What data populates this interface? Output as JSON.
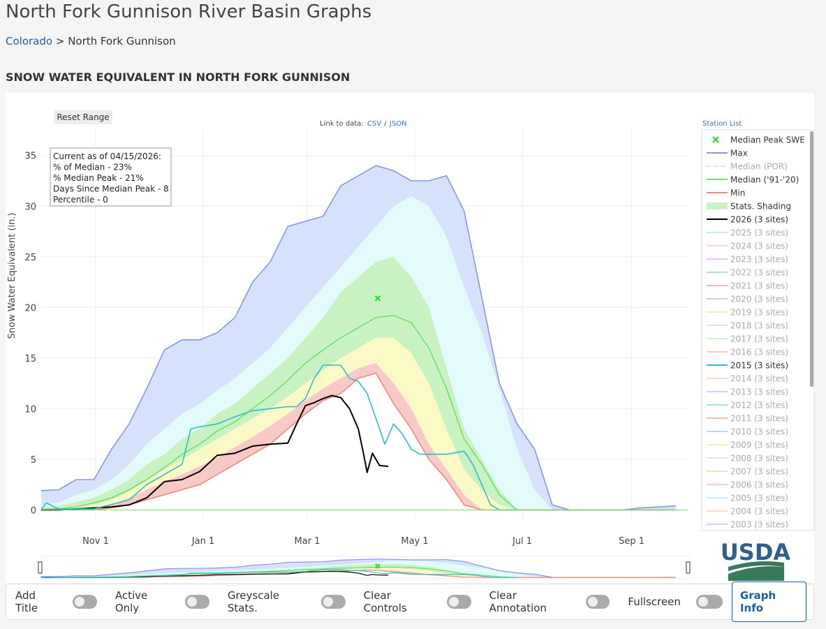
{
  "header": {
    "title": "North Fork Gunnison River Basin Graphs",
    "breadcrumb_link": "Colorado",
    "breadcrumb_sep": ">",
    "breadcrumb_current": "North Fork Gunnison",
    "section_title": "SNOW WATER EQUIVALENT IN NORTH FORK GUNNISON"
  },
  "chart_controls": {
    "reset_range": "Reset Range",
    "link_label": "Link to data:",
    "csv": "CSV",
    "slash": "/",
    "json": "JSON",
    "station_list": "Station List"
  },
  "chart_data": {
    "type": "line",
    "y_label": "Snow Water Equivalent (in.)",
    "xlim": [
      0,
      367
    ],
    "ylim": [
      -1,
      37.6
    ],
    "xticks": [
      {
        "value": 31,
        "label": "Nov 1"
      },
      {
        "value": 92,
        "label": "Jan 1"
      },
      {
        "value": 151,
        "label": "Mar 1"
      },
      {
        "value": 212,
        "label": "May 1"
      },
      {
        "value": 273,
        "label": "Jul 1"
      },
      {
        "value": 335,
        "label": "Sep 1"
      }
    ],
    "yticks": [
      0,
      5,
      10,
      15,
      20,
      25,
      30,
      35
    ],
    "grid": true,
    "annotation": [
      "Current as of 04/15/2026:",
      "% of Median - 23%",
      "% Median Peak - 21%",
      "Days Since Median Peak - 8",
      "Percentile - 0"
    ],
    "x": [
      0,
      10,
      20,
      30,
      40,
      50,
      60,
      70,
      80,
      90,
      100,
      110,
      120,
      130,
      140,
      150,
      160,
      170,
      180,
      190,
      200,
      210,
      220,
      230,
      240,
      250,
      260,
      270,
      280,
      290,
      300,
      310,
      320,
      330,
      340,
      350,
      360
    ],
    "series": [
      {
        "name": "Median Peak SWE",
        "style": "marker",
        "color": "#3ddc3d",
        "visible": true,
        "x": [
          191
        ],
        "values": [
          20.9
        ]
      },
      {
        "name": "Max",
        "style": "line",
        "color": "#8b95e8",
        "fill": "#d6e2fb",
        "visible": true,
        "values": [
          1.9,
          2.0,
          3.0,
          3.0,
          6.0,
          8.5,
          12,
          15.8,
          16.8,
          16.8,
          17.5,
          19,
          22.5,
          24.5,
          28,
          28.5,
          29,
          32,
          33,
          34,
          33.5,
          32.5,
          32.5,
          33,
          29.5,
          21,
          12.5,
          8.5,
          6,
          0.5,
          0,
          0,
          0,
          0,
          0.2,
          0.3,
          0.4
        ]
      },
      {
        "name": "Median (POR)",
        "style": "dash",
        "color": "#b9efb4",
        "visible": false
      },
      {
        "name": "Median ('91-'20)",
        "style": "line",
        "color": "#6fe06a",
        "visible": true,
        "values": [
          0,
          0.1,
          0.3,
          0.7,
          1.2,
          2,
          3,
          4.2,
          5.5,
          6.5,
          7.8,
          8.7,
          10,
          11.3,
          12.8,
          14.5,
          15.8,
          17,
          18,
          19,
          19.2,
          18.5,
          16,
          12,
          7,
          4.5,
          1.5,
          0,
          0,
          0,
          0,
          0,
          0,
          0,
          0,
          0,
          0
        ]
      },
      {
        "name": "Min",
        "style": "line",
        "color": "#f08a80",
        "fill": "#ffffff",
        "visible": true,
        "values": [
          0,
          0,
          0,
          0,
          0.2,
          0.5,
          1,
          1.5,
          2,
          2.5,
          3.5,
          4.5,
          5.5,
          6.5,
          8,
          9.5,
          10.8,
          11.5,
          13,
          13.5,
          10.5,
          8,
          5,
          3,
          0.5,
          0,
          0,
          0,
          0,
          0,
          0,
          0,
          0,
          0,
          0,
          0,
          0
        ]
      },
      {
        "name": "Stats. Shading",
        "style": "shade",
        "color": "#c9f2c3",
        "visible": true,
        "bands": [
          {
            "color": "#e3fbfb",
            "values": [
              0.5,
              0.7,
              1.5,
              2,
              3,
              4.5,
              6.5,
              8,
              9.5,
              10.5,
              11.8,
              13,
              14.5,
              16,
              18,
              20,
              22,
              24,
              26,
              28,
              30,
              31,
              30,
              27,
              22,
              17.5,
              12,
              6,
              2,
              0,
              0,
              0,
              0,
              0,
              0,
              0,
              0
            ]
          },
          {
            "color": "#c9f2c3",
            "values": [
              0.2,
              0.4,
              0.8,
              1.2,
              2,
              3,
              4.5,
              5.5,
              7,
              8,
              9.5,
              10.5,
              12,
              13.5,
              15,
              17,
              19,
              21.5,
              23,
              24.5,
              25,
              23,
              20,
              14,
              8,
              5,
              2,
              0,
              0,
              0,
              0,
              0,
              0,
              0,
              0,
              0,
              0
            ]
          },
          {
            "color": "#fbf9c6",
            "values": [
              0,
              0.1,
              0.3,
              0.5,
              1,
              1.8,
              3,
              4,
              5,
              6,
              7,
              8,
              9,
              10,
              11.2,
              12.5,
              13.8,
              15,
              16,
              17,
              17,
              15.5,
              12.5,
              8,
              4,
              2,
              0.5,
              0,
              0,
              0,
              0,
              0,
              0,
              0,
              0,
              0,
              0
            ]
          },
          {
            "color": "#f7c9c7",
            "values": [
              0,
              0,
              0,
              0.1,
              0.5,
              1.2,
              2,
              2.8,
              3.5,
              4.3,
              5.2,
              6.2,
              7.2,
              8.3,
              9.5,
              10.8,
              12,
              13,
              14,
              14.5,
              12.5,
              10,
              6.5,
              4,
              1.5,
              0,
              0,
              0,
              0,
              0,
              0,
              0,
              0,
              0,
              0,
              0,
              0
            ]
          }
        ]
      },
      {
        "name": "2026 (3 sites)",
        "style": "line",
        "color": "#000000",
        "width": 2,
        "visible": true,
        "x": [
          0,
          10,
          20,
          30,
          40,
          50,
          60,
          70,
          80,
          90,
          100,
          110,
          120,
          130,
          140,
          145,
          150,
          155,
          160,
          165,
          170,
          175,
          180,
          183,
          185,
          188,
          192,
          197
        ],
        "values": [
          0,
          0,
          0.1,
          0.2,
          0.3,
          0.5,
          1.2,
          2.8,
          3,
          3.8,
          5.4,
          5.6,
          6.3,
          6.5,
          6.6,
          8.5,
          10.3,
          10.6,
          11,
          11.3,
          11.1,
          10,
          8,
          5.5,
          3.7,
          5.6,
          4.4,
          4.3
        ]
      },
      {
        "name": "2025 (3 sites)",
        "style": "line",
        "color": "#9be3f0",
        "visible": false
      },
      {
        "name": "2024 (3 sites)",
        "style": "line",
        "color": "#f8c48c",
        "visible": false
      },
      {
        "name": "2023 (3 sites)",
        "style": "line",
        "color": "#c9a6f5",
        "visible": false
      },
      {
        "name": "2022 (3 sites)",
        "style": "line",
        "color": "#6bd6b0",
        "visible": false
      },
      {
        "name": "2021 (3 sites)",
        "style": "line",
        "color": "#f08a80",
        "visible": false
      },
      {
        "name": "2020 (3 sites)",
        "style": "line",
        "color": "#a6aef0",
        "visible": false
      },
      {
        "name": "2019 (3 sites)",
        "style": "line",
        "color": "#fbe08a",
        "visible": false
      },
      {
        "name": "2018 (3 sites)",
        "style": "line",
        "color": "#f5b8e8",
        "visible": false
      },
      {
        "name": "2017 (3 sites)",
        "style": "line",
        "color": "#b8e6a0",
        "visible": false
      },
      {
        "name": "2016 (3 sites)",
        "style": "line",
        "color": "#f5a8a8",
        "visible": false
      },
      {
        "name": "2015 (3 sites)",
        "style": "line",
        "color": "#2bbfcc",
        "width": 1.6,
        "visible": true,
        "x": [
          0,
          3,
          10,
          30,
          50,
          60,
          70,
          80,
          85,
          90,
          100,
          110,
          120,
          130,
          140,
          145,
          150,
          155,
          160,
          170,
          175,
          180,
          185,
          190,
          195,
          200,
          205,
          210,
          215,
          220,
          230,
          240,
          245,
          250,
          255,
          260,
          270
        ],
        "values": [
          0,
          0.7,
          0.1,
          0.1,
          1,
          2.5,
          3.5,
          4.5,
          8,
          8.2,
          8.5,
          9.2,
          9.8,
          10,
          10.2,
          10.2,
          11,
          13,
          14.3,
          14.3,
          13,
          12.7,
          11.5,
          9,
          6.5,
          8.5,
          7.5,
          6,
          5.5,
          5.5,
          5.5,
          5.8,
          4.5,
          2.5,
          0.5,
          0,
          0
        ]
      },
      {
        "name": "2014 (3 sites)",
        "style": "line",
        "color": "#f8c48c",
        "visible": false
      },
      {
        "name": "2013 (3 sites)",
        "style": "line",
        "color": "#c9a6f5",
        "visible": false
      },
      {
        "name": "2012 (3 sites)",
        "style": "line",
        "color": "#6bd6b0",
        "visible": false
      },
      {
        "name": "2011 (3 sites)",
        "style": "line",
        "color": "#f08a80",
        "visible": false
      },
      {
        "name": "2010 (3 sites)",
        "style": "line",
        "color": "#a6aef0",
        "visible": false
      },
      {
        "name": "2009 (3 sites)",
        "style": "line",
        "color": "#fbe08a",
        "visible": false
      },
      {
        "name": "2008 (3 sites)",
        "style": "line",
        "color": "#f5b8e8",
        "visible": false
      },
      {
        "name": "2007 (3 sites)",
        "style": "line",
        "color": "#b8e6a0",
        "visible": false
      },
      {
        "name": "2006 (3 sites)",
        "style": "line",
        "color": "#f5a8a8",
        "visible": false
      },
      {
        "name": "2005 (3 sites)",
        "style": "line",
        "color": "#9be3f0",
        "visible": false
      },
      {
        "name": "2004 (3 sites)",
        "style": "line",
        "color": "#f8c48c",
        "visible": false
      },
      {
        "name": "2003 (3 sites)",
        "style": "line",
        "color": "#c9a6f5",
        "visible": false
      }
    ]
  },
  "logo": "USDA",
  "toggles": [
    "Add Title",
    "Active Only",
    "Greyscale Stats.",
    "Clear Controls",
    "Clear Annotation",
    "Fullscreen"
  ],
  "graph_info": "Graph Info"
}
